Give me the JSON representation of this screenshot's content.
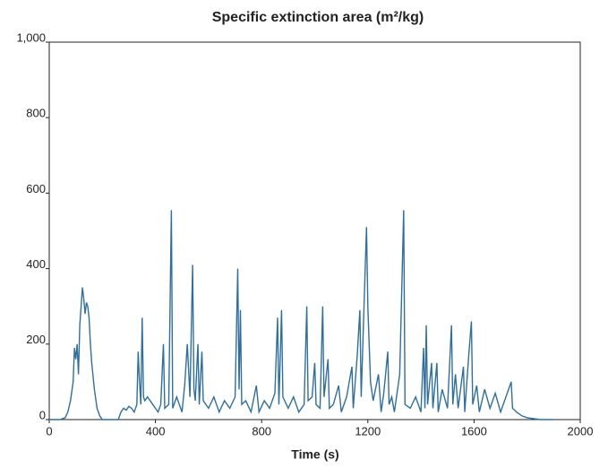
{
  "chart_data": {
    "type": "line",
    "title": "Specific extinction area (m²/kg)",
    "x_label": "Time (s)",
    "x": [
      0,
      40,
      60,
      70,
      80,
      90,
      95,
      100,
      105,
      110,
      115,
      120,
      125,
      130,
      135,
      140,
      145,
      150,
      155,
      160,
      170,
      180,
      190,
      200,
      260,
      270,
      280,
      290,
      300,
      310,
      320,
      330,
      335,
      340,
      345,
      350,
      355,
      360,
      370,
      380,
      390,
      400,
      410,
      420,
      430,
      435,
      450,
      460,
      465,
      480,
      500,
      510,
      520,
      530,
      540,
      545,
      550,
      560,
      565,
      575,
      580,
      600,
      620,
      640,
      660,
      680,
      700,
      710,
      715,
      720,
      725,
      740,
      760,
      780,
      790,
      810,
      830,
      850,
      860,
      865,
      875,
      880,
      900,
      920,
      940,
      960,
      970,
      975,
      990,
      1000,
      1005,
      1020,
      1030,
      1035,
      1050,
      1055,
      1070,
      1090,
      1100,
      1120,
      1140,
      1145,
      1160,
      1170,
      1175,
      1190,
      1195,
      1200,
      1210,
      1220,
      1240,
      1250,
      1260,
      1275,
      1280,
      1290,
      1300,
      1320,
      1335,
      1340,
      1360,
      1380,
      1400,
      1410,
      1415,
      1420,
      1425,
      1440,
      1445,
      1460,
      1465,
      1480,
      1500,
      1515,
      1520,
      1530,
      1540,
      1560,
      1565,
      1580,
      1590,
      1595,
      1610,
      1620,
      1640,
      1660,
      1680,
      1700,
      1720,
      1740,
      1745,
      1760,
      1780,
      1800,
      1850,
      1900
    ],
    "series": [
      {
        "color": "#2f6f9f",
        "values": [
          0,
          0,
          5,
          20,
          50,
          100,
          190,
          160,
          200,
          120,
          250,
          300,
          350,
          320,
          280,
          310,
          300,
          270,
          200,
          150,
          80,
          30,
          10,
          0,
          0,
          20,
          30,
          25,
          35,
          30,
          20,
          40,
          180,
          100,
          40,
          270,
          60,
          50,
          60,
          50,
          40,
          30,
          20,
          40,
          200,
          30,
          40,
          555,
          30,
          60,
          20,
          90,
          200,
          60,
          410,
          80,
          50,
          200,
          40,
          180,
          50,
          30,
          60,
          20,
          50,
          30,
          60,
          400,
          80,
          290,
          40,
          50,
          20,
          90,
          20,
          50,
          30,
          70,
          270,
          40,
          290,
          60,
          30,
          60,
          20,
          40,
          300,
          50,
          60,
          150,
          40,
          30,
          300,
          60,
          160,
          30,
          40,
          90,
          20,
          60,
          140,
          30,
          170,
          290,
          60,
          400,
          510,
          300,
          100,
          50,
          120,
          20,
          70,
          180,
          40,
          60,
          20,
          120,
          555,
          40,
          30,
          60,
          20,
          190,
          30,
          250,
          40,
          150,
          30,
          150,
          20,
          80,
          30,
          250,
          40,
          120,
          30,
          140,
          20,
          170,
          260,
          40,
          90,
          20,
          80,
          30,
          70,
          20,
          60,
          100,
          30,
          20,
          10,
          5,
          0,
          0
        ]
      }
    ],
    "xlim": [
      0,
      2000
    ],
    "xticks": [
      0,
      400,
      800,
      1200,
      1600,
      2000
    ],
    "ylim": [
      0,
      1000
    ],
    "yticks": [
      0,
      200,
      400,
      600,
      800,
      {
        "value": 1000,
        "label": "1,000"
      }
    ]
  }
}
